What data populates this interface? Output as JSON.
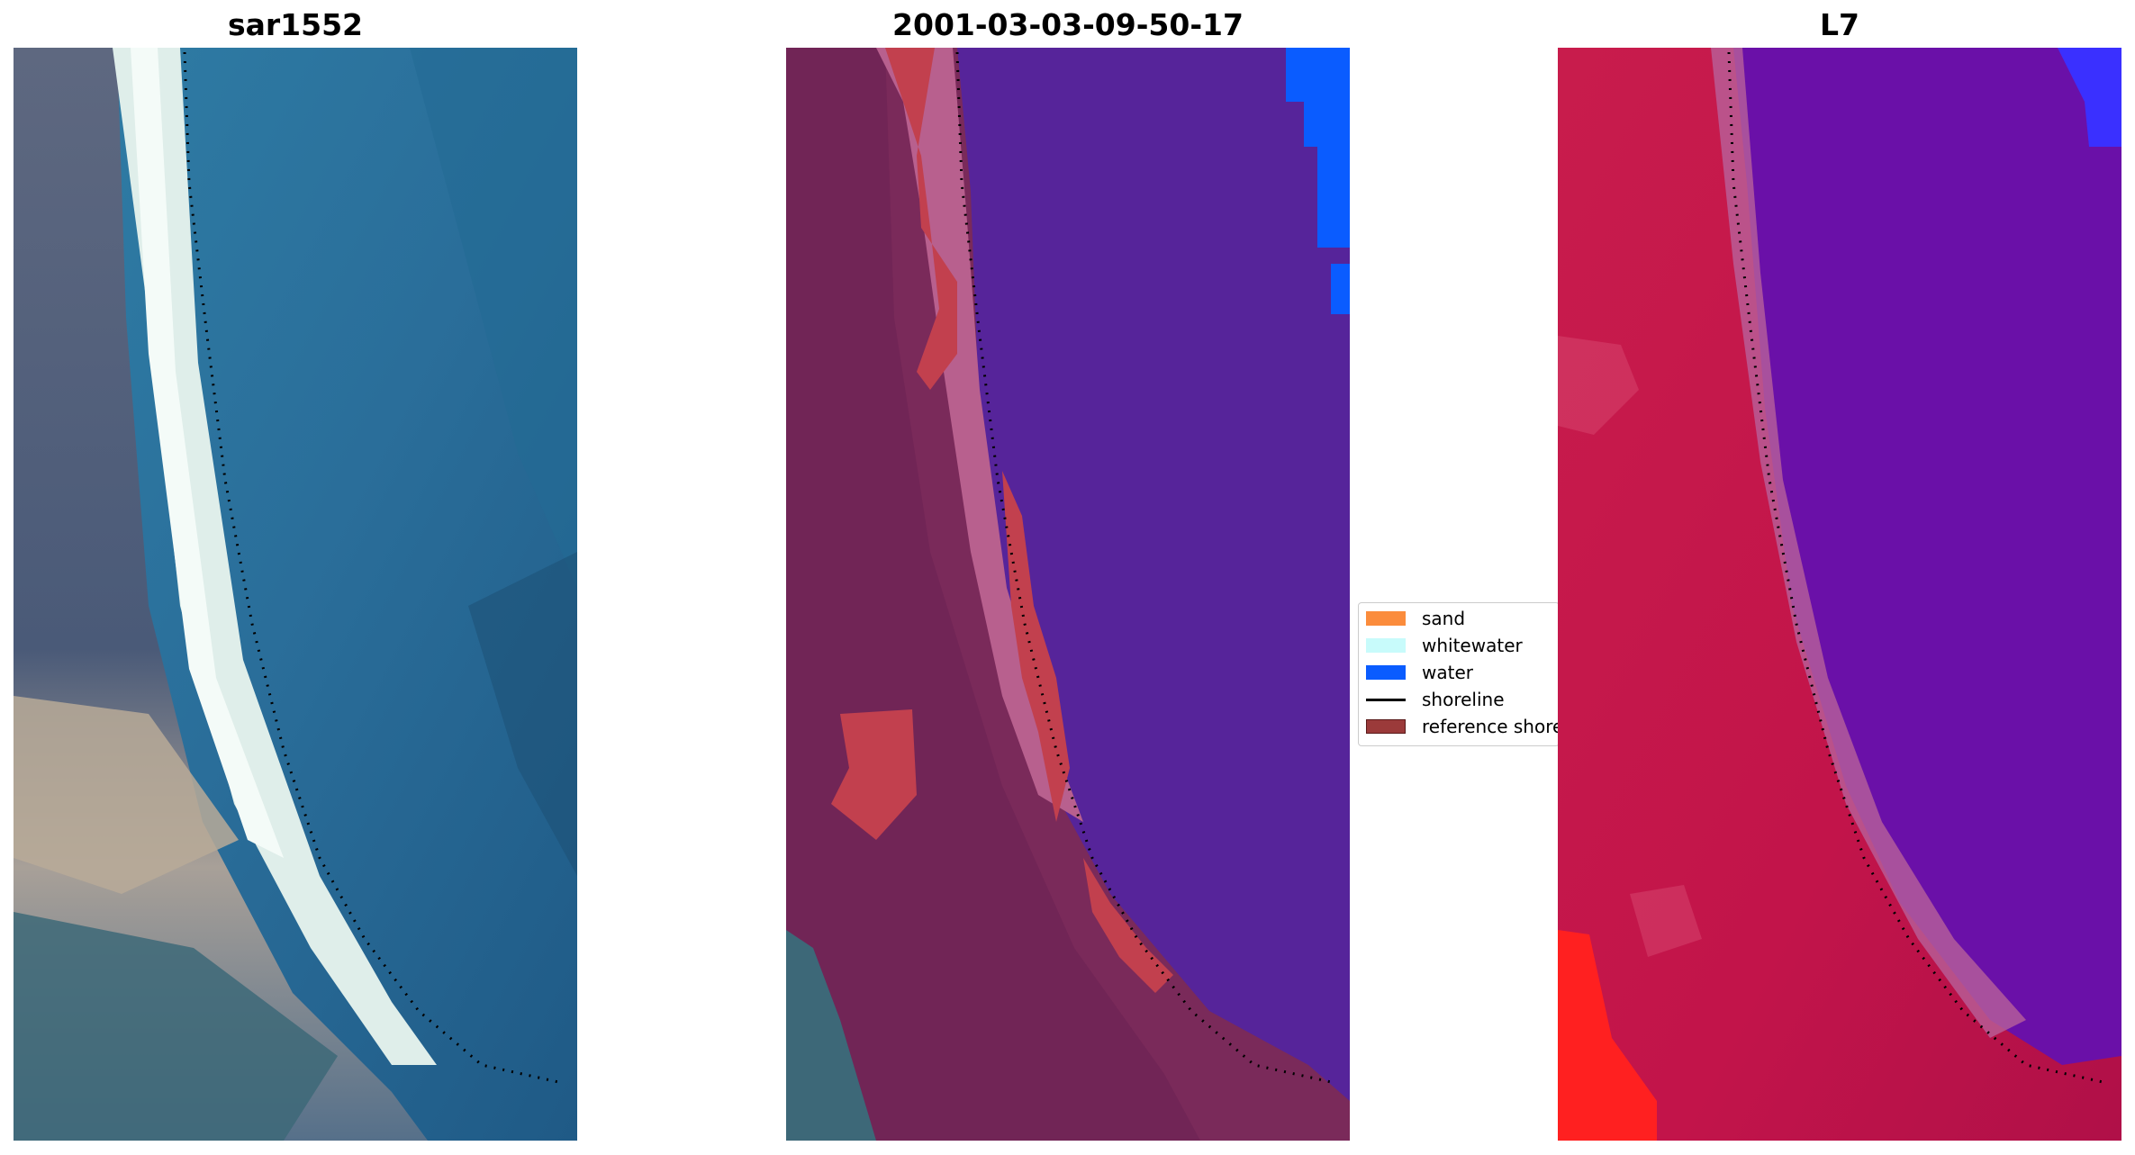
{
  "panels": [
    {
      "title": "sar1552"
    },
    {
      "title": "2001-03-03-09-50-17"
    },
    {
      "title": "L7"
    }
  ],
  "legend": {
    "items": [
      {
        "label": "sand",
        "color": "#fb8c3c",
        "kind": "patch"
      },
      {
        "label": "whitewater",
        "color": "#c8fbfb",
        "kind": "patch"
      },
      {
        "label": "water",
        "color": "#0a5cff",
        "kind": "patch"
      },
      {
        "label": "shoreline",
        "color": "#000000",
        "kind": "line"
      },
      {
        "label": "reference shoreline",
        "color": "#9b3a3a",
        "kind": "patch"
      }
    ]
  },
  "colors": {
    "rgb_water": "#2a6e98",
    "rgb_land": "#5a6680",
    "rgb_beach": "#e8f2ee",
    "class_land": "#7a2a5a",
    "class_water": "#56249a",
    "class_sand_overlay": "#c2404e",
    "class_whitewater_overlay": "#b8608e",
    "ndwi_land": "#c8184a",
    "ndwi_water": "#6a10a8",
    "ndwi_bright": "#ff2020"
  }
}
